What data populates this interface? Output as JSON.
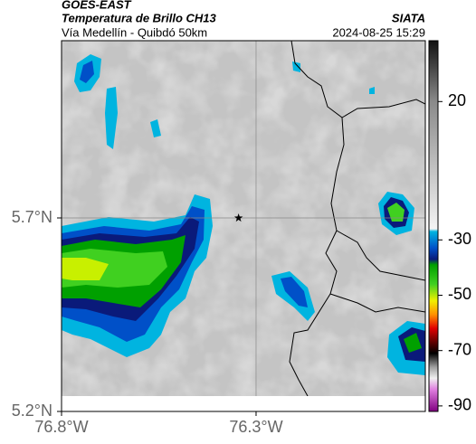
{
  "header": {
    "title": "GOES-EAST",
    "subtitle": "Temperatura de Brillo CH13",
    "route": "Vía Medellín - Quibdó 50km",
    "source": "SIATA",
    "datetime": "2024-08-25 15:29"
  },
  "chart_data": {
    "type": "map",
    "xlim": [
      -76.8,
      -75.865
    ],
    "ylim": [
      5.2,
      6.158
    ],
    "xticks": [
      {
        "value": -76.8,
        "label": "76.8°W"
      },
      {
        "value": -76.3,
        "label": "76.3°W"
      }
    ],
    "yticks": [
      {
        "value": 5.7,
        "label": "5.7°N"
      },
      {
        "value": 5.2,
        "label": "5.2°N"
      }
    ],
    "marker": [
      -76.345,
      5.7
    ],
    "colorbar": {
      "clim": [
        -92,
        42
      ],
      "ticks": [
        20,
        -30,
        -50,
        -70,
        -90
      ],
      "colormap": [
        {
          "value": 42,
          "color": "#111111"
        },
        {
          "value": 20,
          "color": "#8a8a8a"
        },
        {
          "value": -26,
          "color": "#f4f4f4"
        },
        {
          "value": -27,
          "color": "#00b4e0"
        },
        {
          "value": -33,
          "color": "#0050c8"
        },
        {
          "value": -37,
          "color": "#0a1a7a"
        },
        {
          "value": -39,
          "color": "#00a000"
        },
        {
          "value": -46,
          "color": "#40d020"
        },
        {
          "value": -52,
          "color": "#f0f000"
        },
        {
          "value": -57,
          "color": "#ff9000"
        },
        {
          "value": -62,
          "color": "#e00000"
        },
        {
          "value": -67,
          "color": "#600000"
        },
        {
          "value": -71,
          "color": "#000000"
        },
        {
          "value": -76,
          "color": "#a0a0a0"
        },
        {
          "value": -80,
          "color": "#f0f0f0"
        },
        {
          "value": -84,
          "color": "#e080e0"
        },
        {
          "value": -92,
          "color": "#800080"
        }
      ]
    }
  }
}
